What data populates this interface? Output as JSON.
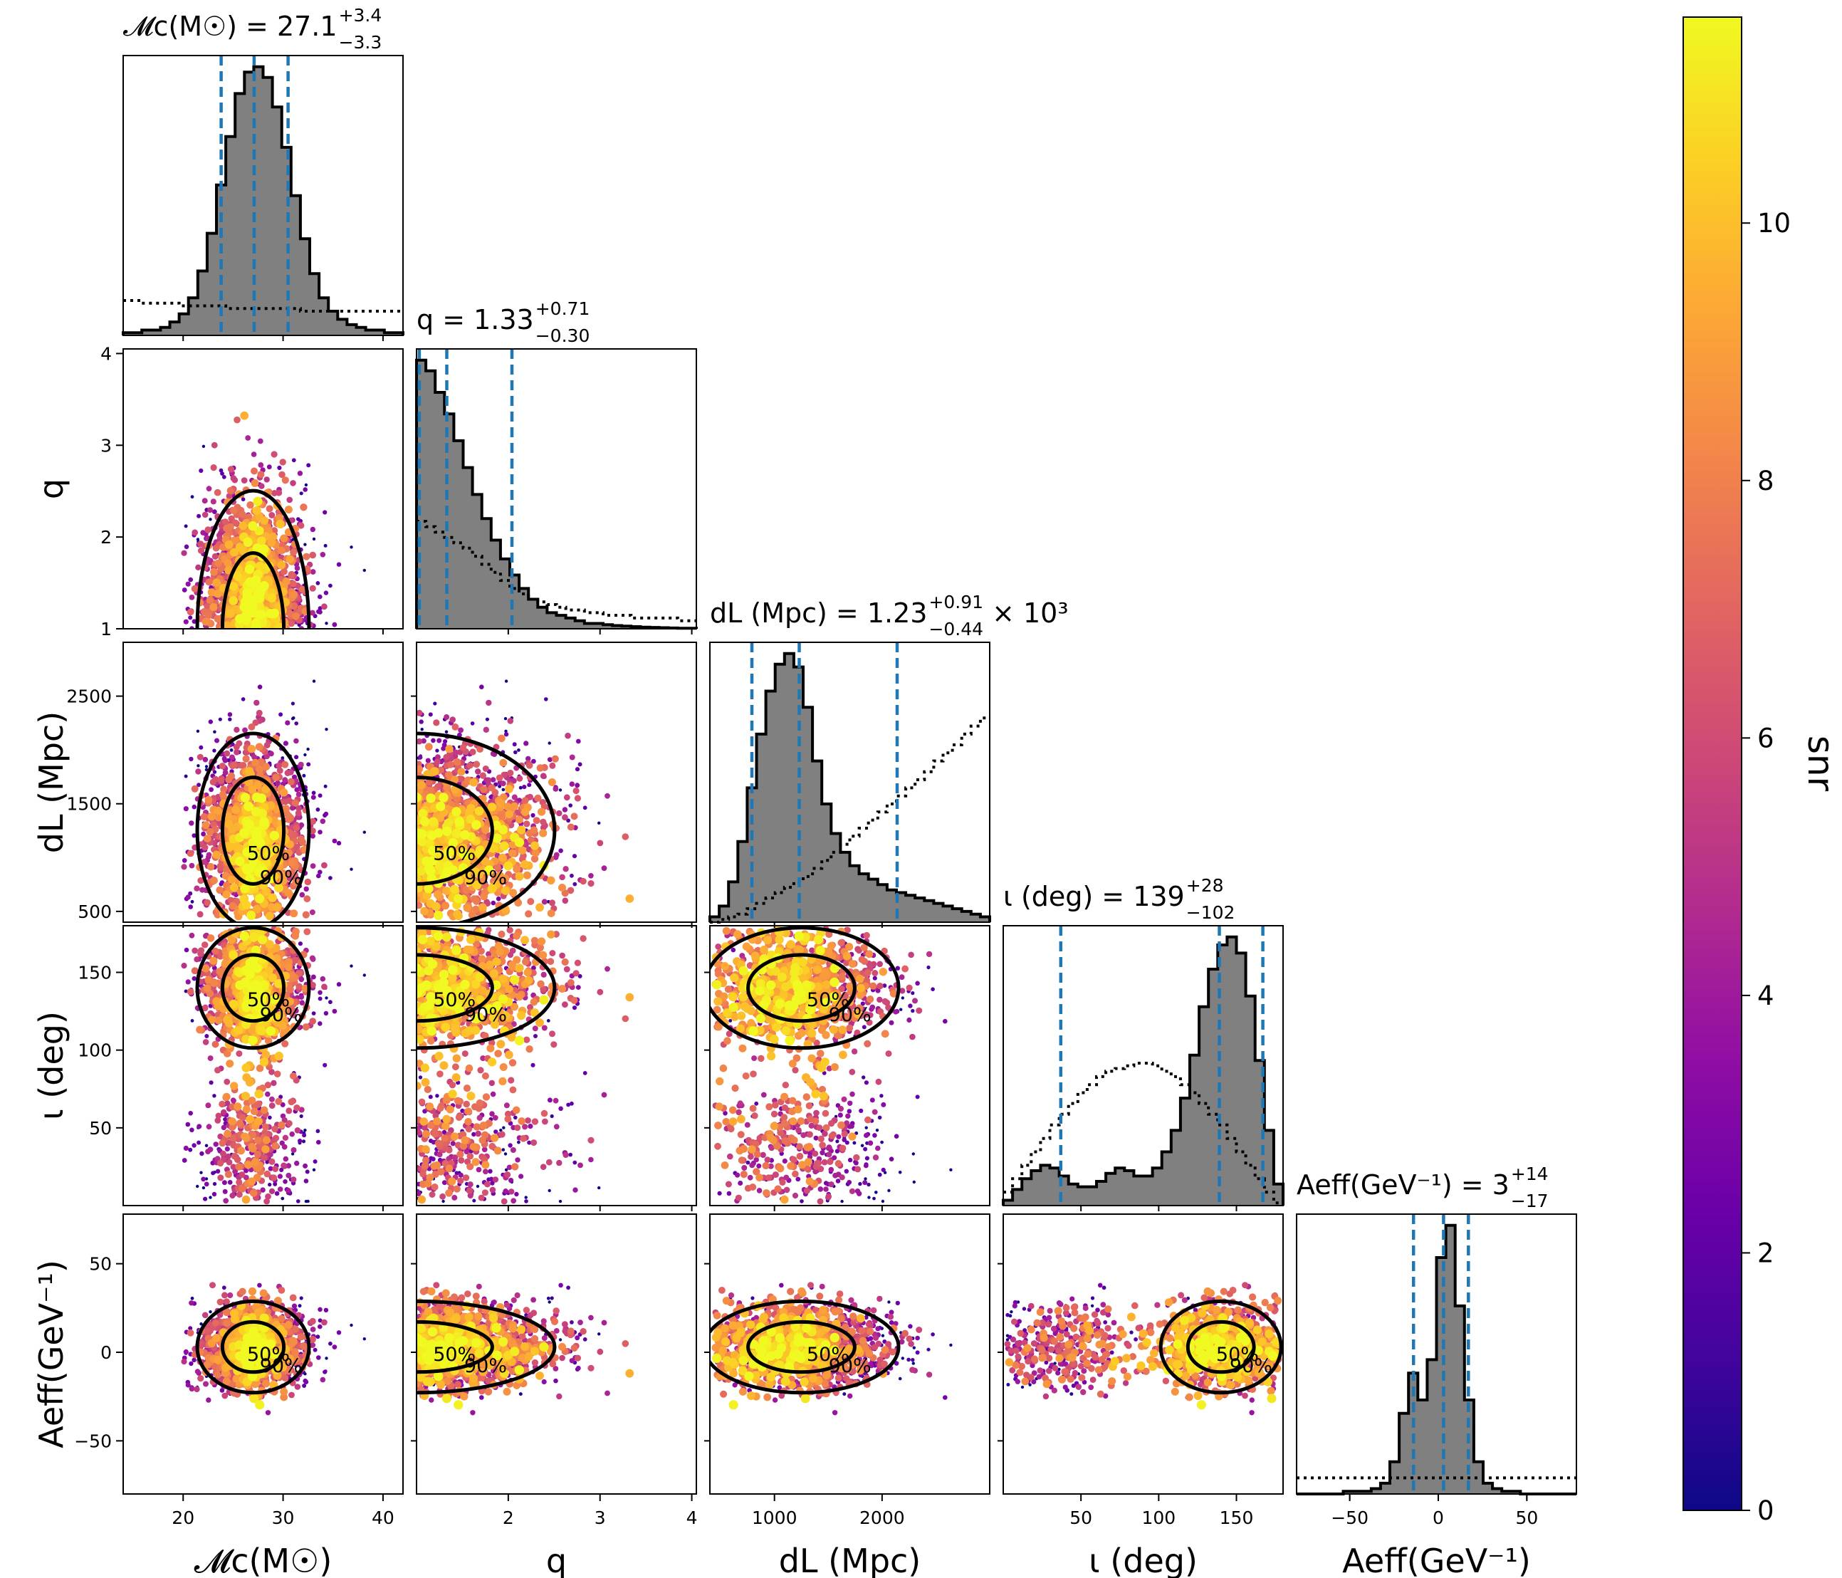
{
  "chart_data": {
    "type": "scatter",
    "title": "",
    "parameters": [
      {
        "key": "mc",
        "axis_label": "𝓜c(M☉)",
        "title": "𝓜c(M☉) = 27.1",
        "median": "27.1",
        "plus": "+3.4",
        "minus": "−3.3",
        "range": [
          14,
          42
        ],
        "ticks": [
          20,
          30,
          40
        ],
        "tick_labels": [
          "20",
          "30",
          "40"
        ],
        "quantiles": [
          23.8,
          27.1,
          30.5
        ]
      },
      {
        "key": "q",
        "axis_label": "q",
        "title": "q = 1.33",
        "median": "1.33",
        "plus": "+0.71",
        "minus": "−0.30",
        "range": [
          1.0,
          4.05
        ],
        "ticks": [
          2,
          3,
          4
        ],
        "tick_labels": [
          "2",
          "3",
          "4"
        ],
        "ticks_right": [
          1,
          2,
          3,
          4
        ],
        "tick_labels_right": [
          "1",
          "2",
          "3",
          "4"
        ],
        "quantiles": [
          1.03,
          1.33,
          2.04
        ]
      },
      {
        "key": "dl",
        "axis_label": "dL (Mpc)",
        "title": "dL (Mpc) = 1.23",
        "median": "1.23",
        "plus": "+0.91",
        "minus": "−0.44",
        "suffix": "× 10³",
        "range": [
          400,
          3000
        ],
        "ticks": [
          1000,
          2000
        ],
        "tick_labels": [
          "1000",
          "2000"
        ],
        "ticks_left": [
          500,
          1500,
          2500
        ],
        "tick_labels_left": [
          "500",
          "1500",
          "2500"
        ],
        "quantiles": [
          790,
          1230,
          2140
        ]
      },
      {
        "key": "iota",
        "axis_label": "ι (deg)",
        "title": "ι (deg) = 139",
        "median": "139",
        "plus": "+28",
        "minus": "−102",
        "range": [
          0,
          180
        ],
        "ticks": [
          50,
          100,
          150
        ],
        "tick_labels": [
          "50",
          "100",
          "150"
        ],
        "quantiles": [
          37,
          139,
          167
        ]
      },
      {
        "key": "aeff",
        "axis_label": "Aeff(GeV⁻¹)",
        "title": "Aeff(GeV⁻¹) = 3",
        "median": "3",
        "plus": "+14",
        "minus": "−17",
        "range": [
          -80,
          78
        ],
        "ticks": [
          -50,
          0,
          50
        ],
        "tick_labels": [
          "−50",
          "0",
          "50"
        ],
        "quantiles": [
          -14,
          3,
          17
        ]
      }
    ],
    "contour_levels": [
      "50%",
      "90%"
    ],
    "posterior_histograms": {
      "mc": [
        0.01,
        0.01,
        0.02,
        0.02,
        0.03,
        0.05,
        0.08,
        0.14,
        0.24,
        0.38,
        0.56,
        0.74,
        0.9,
        0.98,
        1.0,
        0.96,
        0.85,
        0.7,
        0.52,
        0.36,
        0.23,
        0.14,
        0.09,
        0.06,
        0.04,
        0.03,
        0.02,
        0.02,
        0.01,
        0.01
      ],
      "q": [
        1.0,
        0.96,
        0.88,
        0.8,
        0.7,
        0.6,
        0.5,
        0.41,
        0.33,
        0.26,
        0.2,
        0.15,
        0.11,
        0.08,
        0.06,
        0.05,
        0.04,
        0.03,
        0.02,
        0.02,
        0.015,
        0.012,
        0.01,
        0.008,
        0.006,
        0.005,
        0.004,
        0.003,
        0.002,
        0.002
      ],
      "dl": [
        0.02,
        0.06,
        0.15,
        0.3,
        0.5,
        0.7,
        0.86,
        0.96,
        1.0,
        0.95,
        0.8,
        0.6,
        0.44,
        0.33,
        0.26,
        0.21,
        0.18,
        0.16,
        0.14,
        0.12,
        0.11,
        0.1,
        0.09,
        0.08,
        0.07,
        0.06,
        0.05,
        0.04,
        0.03,
        0.02
      ],
      "iota": [
        0.02,
        0.06,
        0.1,
        0.13,
        0.15,
        0.14,
        0.11,
        0.08,
        0.07,
        0.07,
        0.09,
        0.12,
        0.14,
        0.13,
        0.11,
        0.11,
        0.14,
        0.2,
        0.28,
        0.4,
        0.56,
        0.74,
        0.88,
        0.97,
        1.0,
        0.94,
        0.78,
        0.54,
        0.28,
        0.08
      ],
      "aeff": [
        0.0,
        0.0,
        0.0,
        0.0,
        0.0,
        0.01,
        0.01,
        0.01,
        0.02,
        0.04,
        0.12,
        0.3,
        0.45,
        0.35,
        0.5,
        0.88,
        1.0,
        0.7,
        0.35,
        0.12,
        0.04,
        0.02,
        0.01,
        0.01,
        0.0,
        0.0,
        0.0,
        0.0,
        0.0,
        0.0
      ]
    },
    "prior_histograms": {
      "mc": [
        0.13,
        0.13,
        0.12,
        0.12,
        0.12,
        0.12,
        0.11,
        0.11,
        0.11,
        0.11,
        0.11,
        0.1,
        0.1,
        0.1,
        0.1,
        0.1,
        0.1,
        0.1,
        0.1,
        0.09,
        0.09,
        0.09,
        0.09,
        0.09,
        0.09,
        0.09,
        0.09,
        0.09,
        0.09,
        0.09
      ],
      "q": [
        0.4,
        0.38,
        0.36,
        0.34,
        0.32,
        0.3,
        0.27,
        0.24,
        0.21,
        0.18,
        0.15,
        0.13,
        0.11,
        0.1,
        0.09,
        0.08,
        0.07,
        0.07,
        0.06,
        0.06,
        0.05,
        0.05,
        0.05,
        0.04,
        0.04,
        0.04,
        0.04,
        0.04,
        0.03,
        0.03
      ],
      "dl": [
        0.0,
        0.01,
        0.02,
        0.03,
        0.05,
        0.07,
        0.09,
        0.11,
        0.13,
        0.15,
        0.17,
        0.2,
        0.23,
        0.26,
        0.29,
        0.32,
        0.35,
        0.38,
        0.41,
        0.44,
        0.47,
        0.5,
        0.53,
        0.56,
        0.6,
        0.63,
        0.66,
        0.7,
        0.73,
        0.76
      ],
      "iota": [
        0.05,
        0.1,
        0.15,
        0.2,
        0.25,
        0.3,
        0.34,
        0.38,
        0.42,
        0.45,
        0.48,
        0.5,
        0.51,
        0.52,
        0.53,
        0.53,
        0.52,
        0.5,
        0.48,
        0.45,
        0.42,
        0.38,
        0.34,
        0.3,
        0.25,
        0.2,
        0.15,
        0.1,
        0.05,
        0.01
      ],
      "aeff": [
        0.06,
        0.06,
        0.06,
        0.06,
        0.06,
        0.06,
        0.06,
        0.06,
        0.06,
        0.06,
        0.06,
        0.06,
        0.06,
        0.06,
        0.06,
        0.06,
        0.06,
        0.06,
        0.06,
        0.06,
        0.06,
        0.06,
        0.06,
        0.06,
        0.06,
        0.06,
        0.06,
        0.06,
        0.06,
        0.06
      ]
    },
    "posterior_model": {
      "mc": {
        "mean": 27.0,
        "sd": 2.6
      },
      "q": {
        "mean": 1.0,
        "sd": 0.7
      },
      "dl": {
        "mean": 1250,
        "sd": 420
      },
      "iota": {
        "modes": [
          {
            "w": 0.72,
            "mean": 140,
            "sd": 18
          },
          {
            "w": 0.28,
            "mean": 40,
            "sd": 22
          }
        ]
      },
      "aeff": {
        "mean": 3,
        "sd": 12
      }
    },
    "colorbar": {
      "label": "snr",
      "range": [
        0,
        11.6
      ],
      "ticks": [
        0,
        2,
        4,
        6,
        8,
        10
      ],
      "tick_labels": [
        "0",
        "2",
        "4",
        "6",
        "8",
        "10"
      ],
      "colormap": "plasma"
    },
    "colors": {
      "histogram_fill": "#808080",
      "quantile_line": "#1f77b4",
      "plasma": [
        "#0d0887",
        "#41049d",
        "#6a00a8",
        "#8f0da4",
        "#b12a90",
        "#cc4778",
        "#e16462",
        "#f2844b",
        "#fca636",
        "#fcce25",
        "#f0f921"
      ]
    },
    "legend": "none",
    "grid": false
  }
}
